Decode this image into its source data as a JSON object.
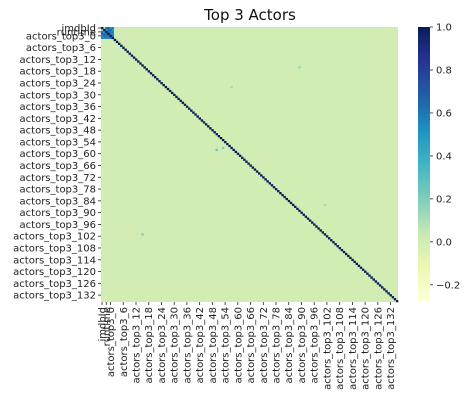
{
  "chart_data": {
    "type": "heatmap",
    "title": "Top 3 Actors",
    "xlabel": "",
    "ylabel": "",
    "matrix_size": 140,
    "colormap": "YlGnBu",
    "vmin": -0.28,
    "vmax": 1.0,
    "background_value": 0.0,
    "diagonal_value": 1.0,
    "colorbar": {
      "ticks": [
        1.0,
        0.8,
        0.6,
        0.4,
        0.2,
        0.0,
        -0.2
      ],
      "tick_labels": [
        "1.0",
        "0.8",
        "0.6",
        "0.4",
        "0.2",
        "0.0",
        "−0.2"
      ]
    },
    "row_ticks": [
      {
        "index": 0,
        "label": "imdbId"
      },
      {
        "index": 2,
        "label": "runtime"
      },
      {
        "index": 4,
        "label": "actors_top3_0"
      },
      {
        "index": 10,
        "label": "actors_top3_6"
      },
      {
        "index": 16,
        "label": "actors_top3_12"
      },
      {
        "index": 22,
        "label": "actors_top3_18"
      },
      {
        "index": 28,
        "label": "actors_top3_24"
      },
      {
        "index": 34,
        "label": "actors_top3_30"
      },
      {
        "index": 40,
        "label": "actors_top3_36"
      },
      {
        "index": 46,
        "label": "actors_top3_42"
      },
      {
        "index": 52,
        "label": "actors_top3_48"
      },
      {
        "index": 58,
        "label": "actors_top3_54"
      },
      {
        "index": 64,
        "label": "actors_top3_60"
      },
      {
        "index": 70,
        "label": "actors_top3_66"
      },
      {
        "index": 76,
        "label": "actors_top3_72"
      },
      {
        "index": 82,
        "label": "actors_top3_78"
      },
      {
        "index": 88,
        "label": "actors_top3_84"
      },
      {
        "index": 94,
        "label": "actors_top3_90"
      },
      {
        "index": 100,
        "label": "actors_top3_96"
      },
      {
        "index": 106,
        "label": "actors_top3_102"
      },
      {
        "index": 112,
        "label": "actors_top3_108"
      },
      {
        "index": 118,
        "label": "actors_top3_114"
      },
      {
        "index": 124,
        "label": "actors_top3_120"
      },
      {
        "index": 130,
        "label": "actors_top3_126"
      },
      {
        "index": 136,
        "label": "actors_top3_132"
      }
    ],
    "col_ticks": [
      {
        "index": 0,
        "label": "imdbId"
      },
      {
        "index": 2,
        "label": "runtime"
      },
      {
        "index": 4,
        "label": "actors_top3_0"
      },
      {
        "index": 10,
        "label": "actors_top3_6"
      },
      {
        "index": 16,
        "label": "actors_top3_12"
      },
      {
        "index": 22,
        "label": "actors_top3_18"
      },
      {
        "index": 28,
        "label": "actors_top3_24"
      },
      {
        "index": 34,
        "label": "actors_top3_30"
      },
      {
        "index": 40,
        "label": "actors_top3_36"
      },
      {
        "index": 46,
        "label": "actors_top3_42"
      },
      {
        "index": 52,
        "label": "actors_top3_48"
      },
      {
        "index": 58,
        "label": "actors_top3_54"
      },
      {
        "index": 64,
        "label": "actors_top3_60"
      },
      {
        "index": 70,
        "label": "actors_top3_66"
      },
      {
        "index": 76,
        "label": "actors_top3_72"
      },
      {
        "index": 82,
        "label": "actors_top3_78"
      },
      {
        "index": 88,
        "label": "actors_top3_84"
      },
      {
        "index": 94,
        "label": "actors_top3_90"
      },
      {
        "index": 100,
        "label": "actors_top3_96"
      },
      {
        "index": 106,
        "label": "actors_top3_102"
      },
      {
        "index": 112,
        "label": "actors_top3_108"
      },
      {
        "index": 118,
        "label": "actors_top3_114"
      },
      {
        "index": 124,
        "label": "actors_top3_120"
      },
      {
        "index": 130,
        "label": "actors_top3_126"
      },
      {
        "index": 136,
        "label": "actors_top3_132"
      }
    ],
    "block": [
      [
        1.0,
        0.1,
        0.6,
        0.7,
        0.5,
        0.6
      ],
      [
        0.1,
        1.0,
        0.5,
        0.6,
        0.7,
        0.5
      ],
      [
        0.6,
        0.5,
        1.0,
        0.65,
        0.55,
        0.6
      ],
      [
        0.7,
        0.6,
        0.65,
        1.0,
        0.6,
        0.55
      ],
      [
        0.5,
        0.7,
        0.55,
        0.6,
        1.0,
        0.6
      ],
      [
        0.6,
        0.5,
        0.6,
        0.55,
        0.6,
        1.0
      ]
    ],
    "notable_cells": [
      {
        "row": 62,
        "col": 54,
        "value": 0.25
      },
      {
        "row": 61,
        "col": 57,
        "value": 0.2
      },
      {
        "row": 20,
        "col": 93,
        "value": 0.15
      },
      {
        "row": 105,
        "col": 19,
        "value": 0.2
      },
      {
        "row": 30,
        "col": 61,
        "value": 0.12
      },
      {
        "row": 90,
        "col": 105,
        "value": 0.12
      }
    ]
  }
}
